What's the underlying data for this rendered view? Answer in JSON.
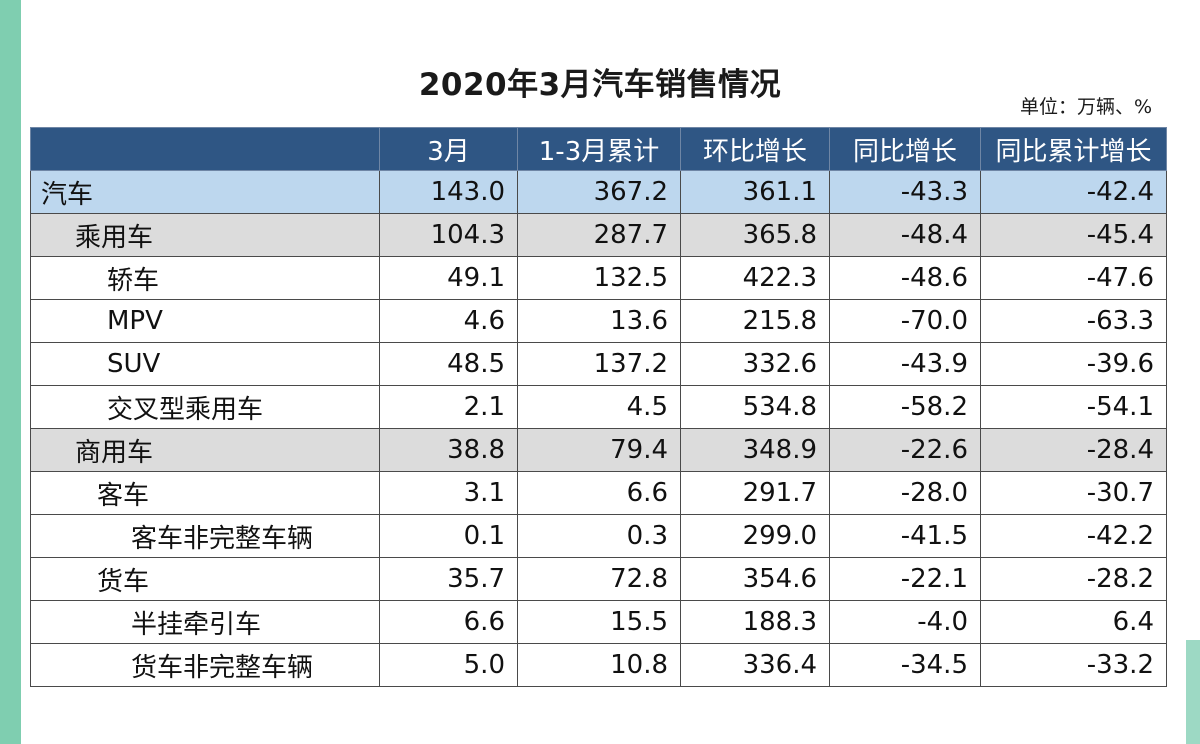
{
  "title": "2020年3月汽车销售情况",
  "unit_note": "单位：万辆、%",
  "columns": [
    "",
    "3月",
    "1-3月累计",
    "环比增长",
    "同比增长",
    "同比累计增长"
  ],
  "rows": [
    {
      "label": "汽车",
      "values": [
        "143.0",
        "367.2",
        "361.1",
        "-43.3",
        "-42.4"
      ]
    },
    {
      "label": "乘用车",
      "values": [
        "104.3",
        "287.7",
        "365.8",
        "-48.4",
        "-45.4"
      ]
    },
    {
      "label": "轿车",
      "values": [
        "49.1",
        "132.5",
        "422.3",
        "-48.6",
        "-47.6"
      ]
    },
    {
      "label": "MPV",
      "values": [
        "4.6",
        "13.6",
        "215.8",
        "-70.0",
        "-63.3"
      ]
    },
    {
      "label": "SUV",
      "values": [
        "48.5",
        "137.2",
        "332.6",
        "-43.9",
        "-39.6"
      ]
    },
    {
      "label": "交叉型乘用车",
      "values": [
        "2.1",
        "4.5",
        "534.8",
        "-58.2",
        "-54.1"
      ]
    },
    {
      "label": "商用车",
      "values": [
        "38.8",
        "79.4",
        "348.9",
        "-22.6",
        "-28.4"
      ]
    },
    {
      "label": "客车",
      "values": [
        "3.1",
        "6.6",
        "291.7",
        "-28.0",
        "-30.7"
      ]
    },
    {
      "label": "客车非完整车辆",
      "values": [
        "0.1",
        "0.3",
        "299.0",
        "-41.5",
        "-42.2"
      ]
    },
    {
      "label": "货车",
      "values": [
        "35.7",
        "72.8",
        "354.6",
        "-22.1",
        "-28.2"
      ]
    },
    {
      "label": "半挂牵引车",
      "values": [
        "6.6",
        "15.5",
        "188.3",
        "-4.0",
        "6.4"
      ]
    },
    {
      "label": "货车非完整车辆",
      "values": [
        "5.0",
        "10.8",
        "336.4",
        "-34.5",
        "-33.2"
      ]
    }
  ],
  "colors": {
    "header_bg": "#2f5684",
    "total_row_bg": "#bdd7ee",
    "subtotal_row_bg": "#dcdcdc",
    "accent_edge": "#7fceb0"
  }
}
